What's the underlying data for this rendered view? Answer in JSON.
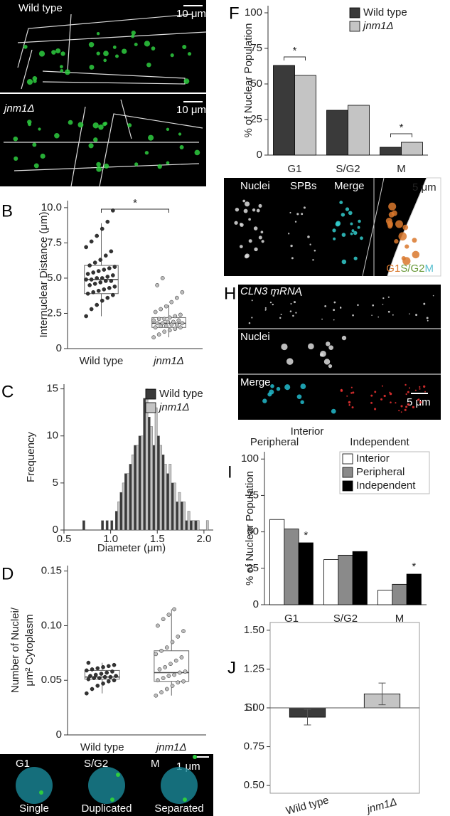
{
  "chart_data": [
    {
      "type": "box",
      "panel_label": "B",
      "ylabel": "Internuclear Distance (μm)",
      "categories": [
        "Wild type",
        "jnm1Δ"
      ],
      "colors": [
        "#333333",
        "#bdbdbd"
      ],
      "ylim": [
        0,
        10.5
      ],
      "yticks": [
        0,
        2.5,
        {
          "value": 5,
          "label": "5.0"
        },
        7.5,
        {
          "value": 10,
          "label": "10.0"
        }
      ],
      "significance": "*",
      "boxes": [
        {
          "whislo": 2.3,
          "q1": 3.9,
          "med": 4.9,
          "q3": 5.9,
          "whishi": 8.9,
          "points": [
            2.3,
            2.8,
            3.1,
            3.4,
            3.6,
            3.8,
            3.9,
            4.0,
            4.1,
            4.2,
            4.3,
            4.4,
            4.5,
            4.6,
            4.7,
            4.8,
            4.8,
            4.9,
            4.9,
            5.0,
            5.0,
            5.1,
            5.2,
            5.3,
            5.4,
            5.5,
            5.6,
            5.7,
            5.8,
            5.9,
            6.1,
            6.3,
            6.6,
            6.9,
            7.2,
            7.6,
            8.0,
            8.5,
            9.0,
            9.8
          ]
        },
        {
          "whislo": 0.8,
          "q1": 1.5,
          "med": 1.8,
          "q3": 2.2,
          "whishi": 3.1,
          "points": [
            0.8,
            1.0,
            1.2,
            1.3,
            1.4,
            1.5,
            1.5,
            1.6,
            1.6,
            1.7,
            1.7,
            1.8,
            1.8,
            1.8,
            1.9,
            1.9,
            2.0,
            2.0,
            2.1,
            2.1,
            2.2,
            2.3,
            2.4,
            2.6,
            2.8,
            3.0,
            3.3,
            3.6,
            4.0,
            4.5,
            5.0
          ]
        }
      ]
    },
    {
      "type": "histogram",
      "panel_label": "C",
      "xlabel": "Diameter (μm)",
      "ylabel": "Frequency",
      "bins": [
        0.7,
        0.75,
        0.8,
        0.85,
        0.9,
        0.95,
        1.0,
        1.05,
        1.1,
        1.15,
        1.2,
        1.25,
        1.3,
        1.35,
        1.4,
        1.45,
        1.5,
        1.55,
        1.6,
        1.65,
        1.7,
        1.75,
        1.8,
        1.85,
        1.9,
        1.95,
        2.0,
        2.05
      ],
      "series": [
        {
          "name": "Wild type",
          "color": "#3a3a3a",
          "values": [
            1,
            0,
            0,
            0,
            1,
            1,
            1,
            2,
            4,
            6,
            7,
            9,
            10,
            14,
            12,
            9,
            10,
            8,
            6,
            5,
            3,
            3,
            1,
            1,
            1,
            0,
            0
          ]
        },
        {
          "name": "jnm1Δ",
          "color": "#c4c4c4",
          "values": [
            0,
            0,
            0,
            0,
            0,
            0,
            0,
            3,
            5,
            6,
            8,
            9,
            10,
            15,
            11,
            13,
            9,
            7,
            7,
            5,
            4,
            3,
            2,
            1,
            1,
            0,
            1
          ]
        }
      ],
      "xlim": [
        0.5,
        2.1
      ],
      "xticks": [
        0.5,
        {
          "value": 1,
          "label": "1.0"
        },
        1.5,
        {
          "value": 2,
          "label": "2.0"
        }
      ],
      "ylim": [
        0,
        15.5
      ],
      "yticks": [
        0,
        5,
        10,
        15
      ],
      "legend": "top-right"
    },
    {
      "type": "box",
      "panel_label": "D",
      "ylabel": [
        "Number of Nuclei/",
        "μm² Cytoplasm"
      ],
      "categories": [
        "Wild type",
        "jnm1Δ"
      ],
      "colors": [
        "#333333",
        "#bdbdbd"
      ],
      "ylim": [
        0,
        0.155
      ],
      "yticks": [
        0,
        0.05,
        {
          "value": 0.1,
          "label": "0.10"
        },
        0.15
      ],
      "boxes": [
        {
          "whislo": 0.038,
          "q1": 0.051,
          "med": 0.053,
          "q3": 0.059,
          "whishi": 0.066,
          "points": [
            0.038,
            0.042,
            0.045,
            0.047,
            0.049,
            0.05,
            0.051,
            0.052,
            0.052,
            0.053,
            0.053,
            0.054,
            0.054,
            0.055,
            0.056,
            0.057,
            0.058,
            0.059,
            0.06,
            0.061,
            0.062,
            0.063,
            0.064,
            0.066
          ]
        },
        {
          "whislo": 0.036,
          "q1": 0.049,
          "med": 0.057,
          "q3": 0.077,
          "whishi": 0.115,
          "points": [
            0.036,
            0.039,
            0.042,
            0.045,
            0.048,
            0.049,
            0.05,
            0.052,
            0.054,
            0.055,
            0.057,
            0.058,
            0.06,
            0.062,
            0.065,
            0.068,
            0.071,
            0.074,
            0.077,
            0.08,
            0.085,
            0.09,
            0.095,
            0.1,
            0.106,
            0.11,
            0.115
          ]
        }
      ]
    },
    {
      "type": "bar",
      "panel_label": "F",
      "ylabel": "% of Nuclear Population",
      "categories": [
        "G1",
        "S/G2",
        "M"
      ],
      "series": [
        {
          "name": "Wild type",
          "color": "#3a3a3a",
          "values": [
            63,
            31.5,
            5.5
          ]
        },
        {
          "name": "jnm1Δ",
          "color": "#c4c4c4",
          "values": [
            56,
            35,
            9
          ]
        }
      ],
      "significance": [
        "*",
        null,
        "*"
      ],
      "ylim": [
        0,
        105
      ],
      "yticks": [
        0,
        25,
        50,
        75,
        100
      ],
      "legend": "top-right"
    },
    {
      "type": "bar",
      "panel_label": "I",
      "ylabel": "% of Nuclear Population",
      "categories": [
        "G1",
        "S/G2",
        "M"
      ],
      "series": [
        {
          "name": "Interior",
          "color": "#ffffff",
          "values": [
            58.5,
            31,
            10
          ]
        },
        {
          "name": "Peripheral",
          "color": "#8a8a8a",
          "values": [
            52,
            34,
            14
          ]
        },
        {
          "name": "Independent",
          "color": "#000000",
          "values": [
            42.5,
            36.5,
            21
          ],
          "marks": [
            "*",
            null,
            "*"
          ]
        }
      ],
      "ylim": [
        0,
        105
      ],
      "yticks": [
        0,
        25,
        50,
        75,
        100
      ],
      "legend": "top-right",
      "legend_box": true
    },
    {
      "type": "bar",
      "panel_label": "J",
      "ylabel": "SI",
      "categories": [
        "Wild type",
        "jnm1Δ"
      ],
      "series": [
        {
          "colors": [
            "#3a3a3a",
            "#c4c4c4"
          ],
          "values": [
            0.94,
            1.09
          ],
          "errors": [
            0.05,
            0.07
          ]
        }
      ],
      "baseline": 1,
      "frame": true,
      "ylim": [
        0.45,
        1.55
      ],
      "yticks": [
        {
          "value": 0.5,
          "label": "0.50"
        },
        0.75,
        {
          "value": 1,
          "label": "1.00"
        },
        1.25,
        {
          "value": 1.5,
          "label": "1.50"
        }
      ]
    }
  ],
  "panels": {
    "A": {
      "label": "A",
      "top": "Wild type",
      "top_scale": "10 μm",
      "bottom": "jnm1Δ",
      "bottom_scale": "10 μm"
    },
    "E": {
      "label": "E",
      "phases": [
        "G1",
        "S/G2",
        "M"
      ],
      "scale": "1 μm",
      "states": [
        "Single",
        "Duplicated",
        "Separated"
      ]
    },
    "G": {
      "label": "G",
      "channels": [
        "Nuclei",
        "SPBs",
        "Merge"
      ],
      "scale": "5 μm",
      "legend": [
        {
          "text": "G1",
          "color": "#d9782d"
        },
        {
          "text": "S/G2",
          "color": "#6a9a3a"
        },
        {
          "text": "M",
          "color": "#5bc0d0"
        }
      ]
    },
    "H": {
      "label": "H",
      "rows": [
        "CLN3 mRNA",
        "Nuclei",
        "Merge"
      ],
      "scale": "5 μm",
      "classes": [
        "Interior",
        "Peripheral",
        "Independent"
      ]
    }
  }
}
